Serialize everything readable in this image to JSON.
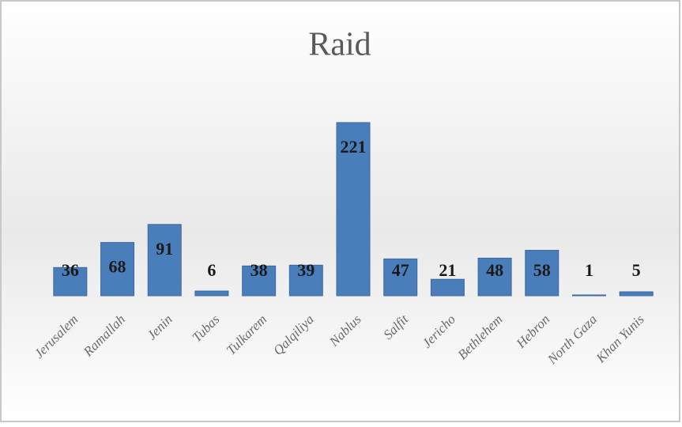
{
  "chart_data": {
    "type": "bar",
    "title": "Raid",
    "categories": [
      "Jerusalem",
      "Ramallah",
      "Jenin",
      "Tubas",
      "Tulkarem",
      "Qalqiliya",
      "Nablus",
      "Salfit",
      "Jericho",
      "Bethlehem",
      "Hebron",
      "North Gaza",
      "Khan Yunis"
    ],
    "values": [
      36,
      68,
      91,
      6,
      38,
      39,
      221,
      47,
      21,
      48,
      58,
      1,
      5
    ],
    "color": "#4a7ebb"
  }
}
